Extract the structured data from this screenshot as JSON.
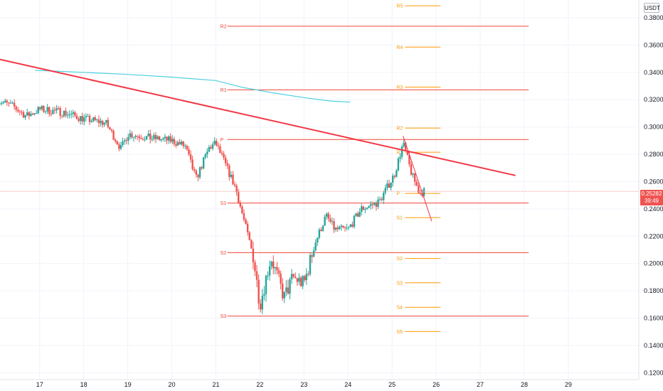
{
  "axis": {
    "currency": "USDT"
  },
  "last_price": {
    "value": "0.25282",
    "countdown": "39:49"
  },
  "colors": {
    "up": "#26a69a",
    "down": "#ef5350",
    "pivot_old": "#f44336",
    "pivot_new": "#ff9800",
    "ma": "#4dd0e1",
    "trend": "#f23645",
    "grid": "#f0f3fa"
  },
  "chart_data": {
    "type": "candlestick",
    "y_axis": {
      "ticks": [
        "0.38000",
        "0.36000",
        "0.34000",
        "0.32000",
        "0.30000",
        "0.28000",
        "0.26000",
        "0.24000",
        "0.22000",
        "0.20000",
        "0.18000",
        "0.16000",
        "0.14000",
        "0.12000"
      ],
      "range": [
        0.115,
        0.393
      ]
    },
    "x_axis": {
      "ticks": [
        "17",
        "18",
        "19",
        "20",
        "21",
        "22",
        "23",
        "24",
        "25",
        "26",
        "27",
        "28",
        "29"
      ],
      "range_days": [
        16.1,
        30.6
      ]
    },
    "pivot_sets": [
      {
        "name": "pivots_prev",
        "x_start": 21.1,
        "x_end": 28.1,
        "levels": [
          {
            "label": "R2",
            "value": 0.3738
          },
          {
            "label": "R1",
            "value": 0.3272
          },
          {
            "label": "P",
            "value": 0.2908
          },
          {
            "label": "S1",
            "value": 0.2443
          },
          {
            "label": "S2",
            "value": 0.208
          },
          {
            "label": "S3",
            "value": 0.1615
          }
        ]
      },
      {
        "name": "pivots_current",
        "x_start": 25.1,
        "x_end": 26.1,
        "levels": [
          {
            "label": "R5",
            "value": 0.3888
          },
          {
            "label": "R4",
            "value": 0.3585
          },
          {
            "label": "R3",
            "value": 0.3292
          },
          {
            "label": "R2",
            "value": 0.2992
          },
          {
            "label": "R1",
            "value": 0.2815
          },
          {
            "label": "P",
            "value": 0.2513
          },
          {
            "label": "S1",
            "value": 0.2336
          },
          {
            "label": "S2",
            "value": 0.2037
          },
          {
            "label": "S3",
            "value": 0.1859
          },
          {
            "label": "S4",
            "value": 0.168
          },
          {
            "label": "S5",
            "value": 0.1502
          }
        ]
      }
    ],
    "trendlines": [
      {
        "from": [
          16.1,
          0.3495
        ],
        "to": [
          27.8,
          0.2645
        ]
      },
      {
        "from": [
          25.25,
          0.2935
        ],
        "to": [
          25.9,
          0.231
        ]
      }
    ],
    "moving_average": {
      "points": [
        [
          16.9,
          0.3415
        ],
        [
          18,
          0.34
        ],
        [
          19,
          0.3385
        ],
        [
          20,
          0.3365
        ],
        [
          21,
          0.334
        ],
        [
          21.6,
          0.329
        ],
        [
          22.3,
          0.325
        ],
        [
          23,
          0.3215
        ],
        [
          23.6,
          0.319
        ],
        [
          24.05,
          0.3182
        ]
      ]
    },
    "candles": {
      "anchors": [
        [
          16.05,
          0.3195
        ],
        [
          16.4,
          0.315
        ],
        [
          16.7,
          0.308
        ],
        [
          17.0,
          0.313
        ],
        [
          17.5,
          0.311
        ],
        [
          18.0,
          0.306
        ],
        [
          18.5,
          0.303
        ],
        [
          18.85,
          0.284
        ],
        [
          19.0,
          0.295
        ],
        [
          19.5,
          0.292
        ],
        [
          20.0,
          0.29
        ],
        [
          20.3,
          0.286
        ],
        [
          20.55,
          0.262
        ],
        [
          20.85,
          0.285
        ],
        [
          21.0,
          0.288
        ],
        [
          21.25,
          0.27
        ],
        [
          21.45,
          0.255
        ],
        [
          21.65,
          0.23
        ],
        [
          21.85,
          0.205
        ],
        [
          22.0,
          0.17
        ],
        [
          22.25,
          0.205
        ],
        [
          22.55,
          0.175
        ],
        [
          22.75,
          0.19
        ],
        [
          23.0,
          0.185
        ],
        [
          23.25,
          0.215
        ],
        [
          23.5,
          0.235
        ],
        [
          23.7,
          0.225
        ],
        [
          24.0,
          0.225
        ],
        [
          24.3,
          0.24
        ],
        [
          24.7,
          0.245
        ],
        [
          25.05,
          0.265
        ],
        [
          25.25,
          0.288
        ],
        [
          25.45,
          0.265
        ],
        [
          25.62,
          0.252
        ],
        [
          25.75,
          0.253
        ]
      ],
      "interval_days": 0.0417
    }
  }
}
